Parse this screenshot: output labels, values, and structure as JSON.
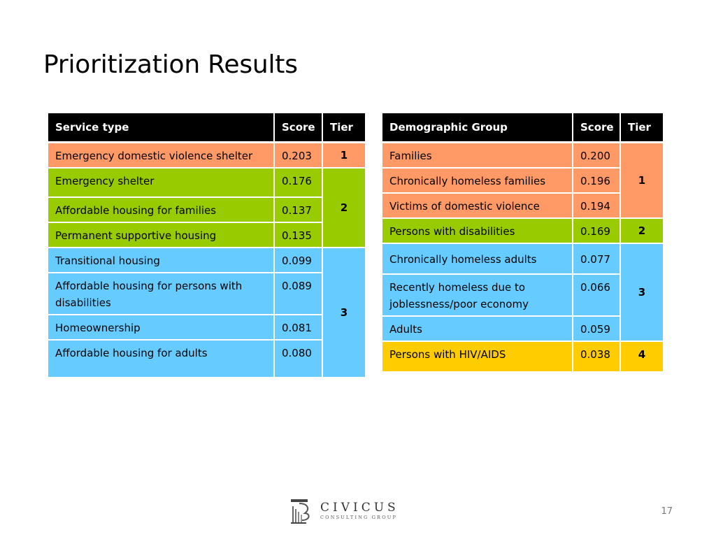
{
  "title": "Prioritization Results",
  "colors": {
    "header": "#000000",
    "tier1": "#ff9966",
    "tier2": "#99cc00",
    "tier3": "#66ccff",
    "tier4": "#ffcc00"
  },
  "service_table": {
    "headers": [
      "Service type",
      "Score",
      "Tier"
    ],
    "rows": [
      {
        "name": "Emergency domestic violence shelter",
        "score": "0.203"
      },
      {
        "name": "Emergency shelter",
        "score": "0.176"
      },
      {
        "name": "Affordable housing for families",
        "score": "0.137"
      },
      {
        "name": "Permanent supportive housing",
        "score": "0.135"
      },
      {
        "name": "Transitional housing",
        "score": "0.099"
      },
      {
        "name": "Affordable housing for persons with disabilities",
        "score": "0.089"
      },
      {
        "name": "Homeownership",
        "score": "0.081"
      },
      {
        "name": "Affordable housing for adults",
        "score": "0.080"
      }
    ],
    "tiers": [
      "1",
      "2",
      "3"
    ]
  },
  "demographic_table": {
    "headers": [
      "Demographic Group",
      "Score",
      "Tier"
    ],
    "rows": [
      {
        "name": "Families",
        "score": "0.200"
      },
      {
        "name": "Chronically homeless families",
        "score": "0.196"
      },
      {
        "name": "Victims of domestic violence",
        "score": "0.194"
      },
      {
        "name": "Persons with disabilities",
        "score": "0.169"
      },
      {
        "name": "Chronically homeless adults",
        "score": "0.077"
      },
      {
        "name": "Recently homeless due to joblessness/poor economy",
        "score": "0.066"
      },
      {
        "name": "Adults",
        "score": "0.059"
      },
      {
        "name": "Persons with HIV/AIDS",
        "score": "0.038"
      }
    ],
    "tiers": [
      "1",
      "2",
      "3",
      "4"
    ]
  },
  "logo": {
    "name": "CIVICUS",
    "subtitle": "CONSULTING GROUP"
  },
  "page_number": "17"
}
